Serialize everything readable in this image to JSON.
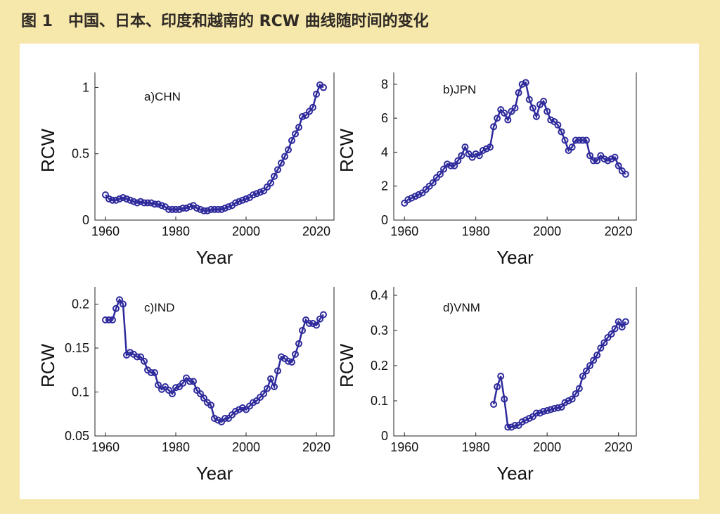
{
  "title": "图 1　中国、日本、印度和越南的 RCW 曲线随时间的变化",
  "chart_data": [
    {
      "type": "line",
      "annotation": "a)CHN",
      "x_label": "Year",
      "y_label": "RCW",
      "x": [
        1960,
        1961,
        1962,
        1963,
        1964,
        1965,
        1966,
        1967,
        1968,
        1969,
        1970,
        1971,
        1972,
        1973,
        1974,
        1975,
        1976,
        1977,
        1978,
        1979,
        1980,
        1981,
        1982,
        1983,
        1984,
        1985,
        1986,
        1987,
        1988,
        1989,
        1990,
        1991,
        1992,
        1993,
        1994,
        1995,
        1996,
        1997,
        1998,
        1999,
        2000,
        2001,
        2002,
        2003,
        2004,
        2005,
        2006,
        2007,
        2008,
        2009,
        2010,
        2011,
        2012,
        2013,
        2014,
        2015,
        2016,
        2017,
        2018,
        2019,
        2020,
        2021,
        2022
      ],
      "series": [
        {
          "color": "#2e2a9c",
          "values": [
            0.19,
            0.16,
            0.15,
            0.15,
            0.16,
            0.17,
            0.16,
            0.15,
            0.14,
            0.13,
            0.14,
            0.13,
            0.13,
            0.13,
            0.12,
            0.12,
            0.11,
            0.1,
            0.08,
            0.08,
            0.08,
            0.08,
            0.09,
            0.09,
            0.1,
            0.11,
            0.09,
            0.08,
            0.07,
            0.07,
            0.08,
            0.08,
            0.08,
            0.08,
            0.09,
            0.1,
            0.11,
            0.13,
            0.14,
            0.15,
            0.16,
            0.17,
            0.19,
            0.2,
            0.21,
            0.22,
            0.25,
            0.28,
            0.33,
            0.38,
            0.43,
            0.48,
            0.53,
            0.6,
            0.65,
            0.7,
            0.78,
            0.79,
            0.82,
            0.85,
            0.95,
            1.02,
            1.0
          ]
        }
      ],
      "xlim": [
        1957,
        2025
      ],
      "xticks": [
        1960,
        1980,
        2000,
        2020
      ],
      "ylim": [
        0,
        1.05
      ],
      "yticks": [
        0,
        0.5,
        1
      ]
    },
    {
      "type": "line",
      "annotation": "b)JPN",
      "x_label": "Year",
      "y_label": "RCW",
      "x": [
        1960,
        1961,
        1962,
        1963,
        1964,
        1965,
        1966,
        1967,
        1968,
        1969,
        1970,
        1971,
        1972,
        1973,
        1974,
        1975,
        1976,
        1977,
        1978,
        1979,
        1980,
        1981,
        1982,
        1983,
        1984,
        1985,
        1986,
        1987,
        1988,
        1989,
        1990,
        1991,
        1992,
        1993,
        1994,
        1995,
        1996,
        1997,
        1998,
        1999,
        2000,
        2001,
        2002,
        2003,
        2004,
        2005,
        2006,
        2007,
        2008,
        2009,
        2010,
        2011,
        2012,
        2013,
        2014,
        2015,
        2016,
        2017,
        2018,
        2019,
        2020,
        2021,
        2022
      ],
      "series": [
        {
          "color": "#2e2a9c",
          "values": [
            1.0,
            1.2,
            1.3,
            1.4,
            1.5,
            1.6,
            1.8,
            2.0,
            2.2,
            2.5,
            2.7,
            3.0,
            3.3,
            3.2,
            3.2,
            3.5,
            3.8,
            4.3,
            3.9,
            3.7,
            3.9,
            3.8,
            4.1,
            4.2,
            4.3,
            5.5,
            6.0,
            6.5,
            6.3,
            5.9,
            6.4,
            6.6,
            7.5,
            8.0,
            8.1,
            7.1,
            6.6,
            6.1,
            6.8,
            7.0,
            6.4,
            5.9,
            5.8,
            5.6,
            5.2,
            4.7,
            4.1,
            4.3,
            4.7,
            4.7,
            4.7,
            4.7,
            3.8,
            3.5,
            3.5,
            3.8,
            3.6,
            3.5,
            3.6,
            3.7,
            3.2,
            2.9,
            2.7
          ]
        }
      ],
      "xlim": [
        1957,
        2025
      ],
      "xticks": [
        1960,
        1980,
        2000,
        2020
      ],
      "ylim": [
        0,
        8.2
      ],
      "yticks": [
        0,
        2,
        4,
        6,
        8
      ]
    },
    {
      "type": "line",
      "annotation": "c)IND",
      "x_label": "Year",
      "y_label": "RCW",
      "x": [
        1960,
        1961,
        1962,
        1963,
        1964,
        1965,
        1966,
        1967,
        1968,
        1969,
        1970,
        1971,
        1972,
        1973,
        1974,
        1975,
        1976,
        1977,
        1978,
        1979,
        1980,
        1981,
        1982,
        1983,
        1984,
        1985,
        1986,
        1987,
        1988,
        1989,
        1990,
        1991,
        1992,
        1993,
        1994,
        1995,
        1996,
        1997,
        1998,
        1999,
        2000,
        2001,
        2002,
        2003,
        2004,
        2005,
        2006,
        2007,
        2008,
        2009,
        2010,
        2011,
        2012,
        2013,
        2014,
        2015,
        2016,
        2017,
        2018,
        2019,
        2020,
        2021,
        2022
      ],
      "series": [
        {
          "color": "#2e2a9c",
          "values": [
            0.182,
            0.182,
            0.182,
            0.195,
            0.205,
            0.2,
            0.142,
            0.145,
            0.143,
            0.14,
            0.14,
            0.135,
            0.125,
            0.122,
            0.122,
            0.108,
            0.103,
            0.106,
            0.102,
            0.098,
            0.105,
            0.106,
            0.11,
            0.116,
            0.112,
            0.112,
            0.102,
            0.098,
            0.093,
            0.088,
            0.085,
            0.07,
            0.068,
            0.066,
            0.07,
            0.07,
            0.074,
            0.078,
            0.08,
            0.082,
            0.08,
            0.084,
            0.088,
            0.09,
            0.094,
            0.098,
            0.104,
            0.115,
            0.106,
            0.124,
            0.14,
            0.138,
            0.135,
            0.134,
            0.143,
            0.155,
            0.17,
            0.182,
            0.178,
            0.178,
            0.176,
            0.183,
            0.188
          ]
        }
      ],
      "xlim": [
        1957,
        2025
      ],
      "xticks": [
        1960,
        1980,
        2000,
        2020
      ],
      "ylim": [
        0.05,
        0.21
      ],
      "yticks": [
        0.05,
        0.1,
        0.15,
        0.2
      ]
    },
    {
      "type": "line",
      "annotation": "d)VNM",
      "x_label": "Year",
      "y_label": "RCW",
      "x": [
        1985,
        1986,
        1987,
        1988,
        1989,
        1990,
        1991,
        1992,
        1993,
        1994,
        1995,
        1996,
        1997,
        1998,
        1999,
        2000,
        2001,
        2002,
        2003,
        2004,
        2005,
        2006,
        2007,
        2008,
        2009,
        2010,
        2011,
        2012,
        2013,
        2014,
        2015,
        2016,
        2017,
        2018,
        2019,
        2020,
        2021,
        2022
      ],
      "series": [
        {
          "color": "#2e2a9c",
          "values": [
            0.09,
            0.14,
            0.17,
            0.105,
            0.025,
            0.025,
            0.03,
            0.03,
            0.04,
            0.045,
            0.05,
            0.055,
            0.065,
            0.065,
            0.07,
            0.072,
            0.075,
            0.078,
            0.08,
            0.082,
            0.095,
            0.1,
            0.105,
            0.12,
            0.135,
            0.17,
            0.185,
            0.2,
            0.215,
            0.23,
            0.25,
            0.265,
            0.28,
            0.29,
            0.305,
            0.325,
            0.31,
            0.325
          ]
        }
      ],
      "xlim": [
        1957,
        2025
      ],
      "xticks": [
        1960,
        1980,
        2000,
        2020
      ],
      "ylim": [
        0,
        0.4
      ],
      "yticks": [
        0,
        0.1,
        0.2,
        0.3,
        0.4
      ]
    }
  ]
}
